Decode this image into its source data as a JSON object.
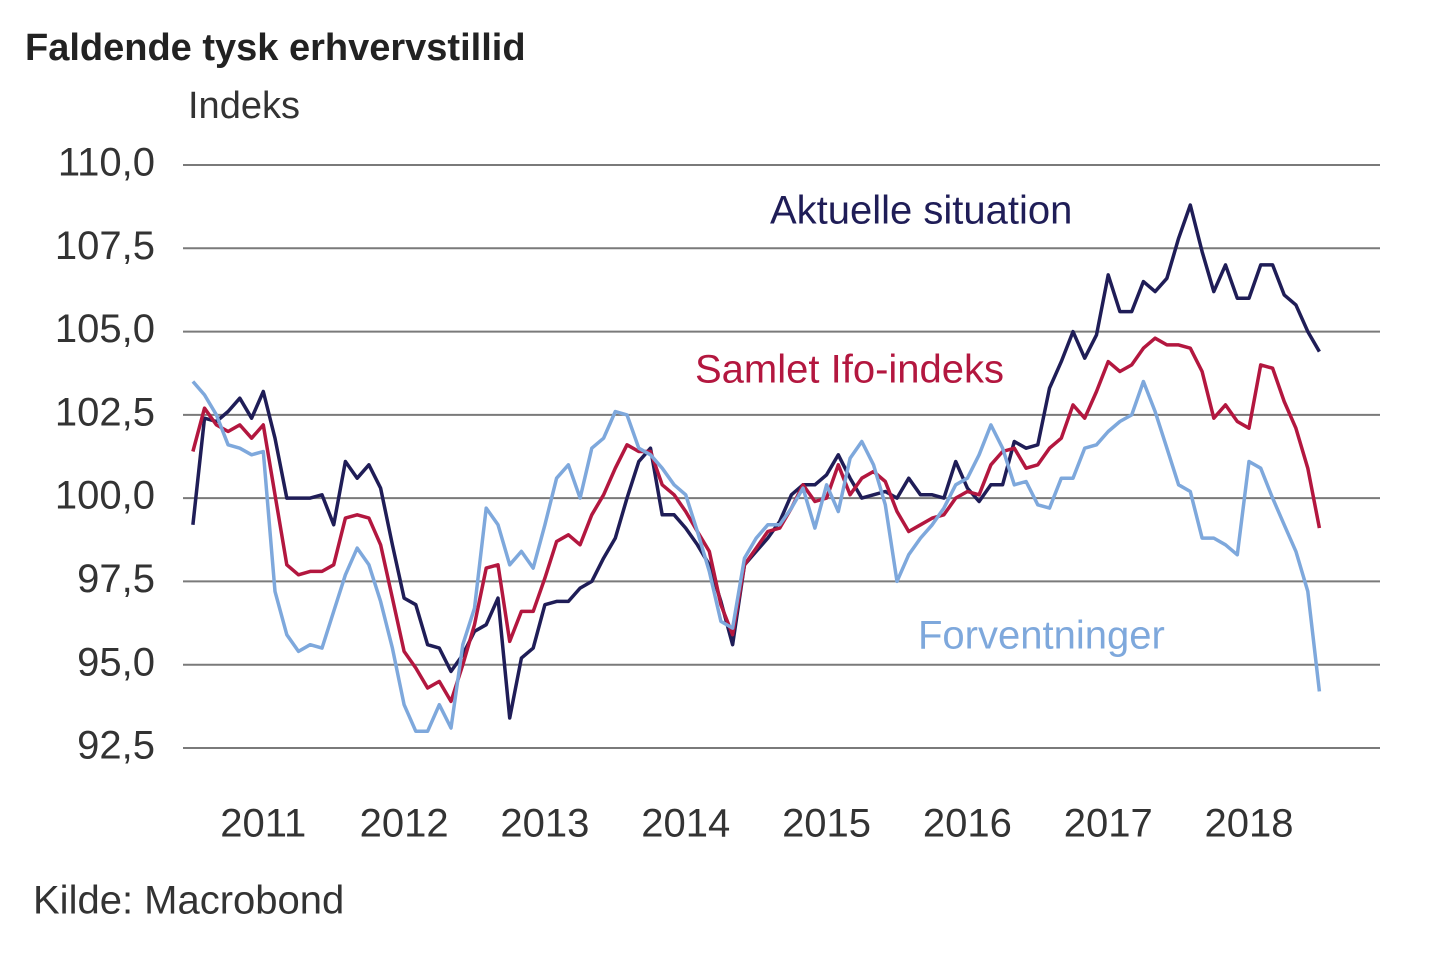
{
  "chart_data": {
    "type": "line",
    "title": "Faldende tysk erhvervstillid",
    "y_label": "Indeks",
    "source": "Kilde: Macrobond",
    "x": [
      2011,
      2011.083,
      2011.167,
      2011.25,
      2011.333,
      2011.417,
      2011.5,
      2011.583,
      2011.667,
      2011.75,
      2011.833,
      2011.917,
      2012,
      2012.083,
      2012.167,
      2012.25,
      2012.333,
      2012.417,
      2012.5,
      2012.583,
      2012.667,
      2012.75,
      2012.833,
      2012.917,
      2013,
      2013.083,
      2013.167,
      2013.25,
      2013.333,
      2013.417,
      2013.5,
      2013.583,
      2013.667,
      2013.75,
      2013.833,
      2013.917,
      2014,
      2014.083,
      2014.167,
      2014.25,
      2014.333,
      2014.417,
      2014.5,
      2014.583,
      2014.667,
      2014.75,
      2014.833,
      2014.917,
      2015,
      2015.083,
      2015.167,
      2015.25,
      2015.333,
      2015.417,
      2015.5,
      2015.583,
      2015.667,
      2015.75,
      2015.833,
      2015.917,
      2016,
      2016.083,
      2016.167,
      2016.25,
      2016.333,
      2016.417,
      2016.5,
      2016.583,
      2016.667,
      2016.75,
      2016.833,
      2016.917,
      2017,
      2017.083,
      2017.167,
      2017.25,
      2017.333,
      2017.417,
      2017.5,
      2017.583,
      2017.667,
      2017.75,
      2017.833,
      2017.917,
      2018,
      2018.083,
      2018.167,
      2018.25,
      2018.333,
      2018.417,
      2018.5,
      2018.583,
      2018.667,
      2018.75,
      2018.833,
      2018.917,
      2019
    ],
    "series": [
      {
        "name": "Aktuelle situation",
        "color": "#1f1d57",
        "values": [
          99.2,
          102.4,
          102.3,
          102.6,
          103.0,
          102.4,
          103.2,
          101.8,
          100.0,
          100.0,
          100.0,
          100.1,
          99.2,
          101.1,
          100.6,
          101.0,
          100.3,
          98.6,
          97.0,
          96.8,
          95.6,
          95.5,
          94.8,
          95.3,
          96.0,
          96.2,
          97.0,
          93.4,
          95.2,
          95.5,
          96.8,
          96.9,
          96.9,
          97.3,
          97.5,
          98.2,
          98.8,
          100.0,
          101.1,
          101.5,
          99.5,
          99.5,
          99.1,
          98.6,
          98.0,
          96.9,
          95.6,
          98.0,
          98.4,
          98.8,
          99.3,
          100.1,
          100.4,
          100.4,
          100.7,
          101.3,
          100.6,
          100.0,
          100.1,
          100.2,
          100.0,
          100.6,
          100.1,
          100.1,
          100.0,
          101.1,
          100.3,
          99.9,
          100.4,
          100.4,
          101.7,
          101.5,
          101.6,
          103.3,
          104.1,
          105.0,
          104.2,
          104.9,
          106.7,
          105.6,
          105.6,
          106.5,
          106.2,
          106.6,
          107.8,
          108.8,
          107.4,
          106.2,
          107.0,
          106.0,
          106.0,
          107.0,
          107.0,
          106.1,
          105.8,
          105.0,
          104.4
        ]
      },
      {
        "name": "Samlet Ifo-indeks",
        "color": "#b3173f",
        "values": [
          101.4,
          102.7,
          102.2,
          102.0,
          102.2,
          101.8,
          102.2,
          100.1,
          98.0,
          97.7,
          97.8,
          97.8,
          98.0,
          99.4,
          99.5,
          99.4,
          98.6,
          97.0,
          95.4,
          94.9,
          94.3,
          94.5,
          93.9,
          95.0,
          96.2,
          97.9,
          98.0,
          95.7,
          96.6,
          96.6,
          97.6,
          98.7,
          98.9,
          98.6,
          99.5,
          100.1,
          100.9,
          101.6,
          101.4,
          101.4,
          100.4,
          100.1,
          99.6,
          99.0,
          98.4,
          96.8,
          95.9,
          98.0,
          98.5,
          99.0,
          99.1,
          99.7,
          100.4,
          99.9,
          100.0,
          101.0,
          100.1,
          100.6,
          100.8,
          100.5,
          99.6,
          99.0,
          99.2,
          99.4,
          99.5,
          100.0,
          100.2,
          100.1,
          101.0,
          101.4,
          101.5,
          100.9,
          101.0,
          101.5,
          101.8,
          102.8,
          102.4,
          103.2,
          104.1,
          103.8,
          104.0,
          104.5,
          104.8,
          104.6,
          104.6,
          104.5,
          103.8,
          102.4,
          102.8,
          102.3,
          102.1,
          104.0,
          103.9,
          102.9,
          102.1,
          100.9,
          99.1
        ]
      },
      {
        "name": "Forventninger",
        "color": "#7ea8dc",
        "values": [
          103.5,
          103.1,
          102.5,
          101.6,
          101.5,
          101.3,
          101.4,
          97.2,
          95.9,
          95.4,
          95.6,
          95.5,
          96.6,
          97.7,
          98.5,
          98.0,
          96.9,
          95.5,
          93.8,
          93.0,
          93.0,
          93.8,
          93.1,
          95.6,
          96.7,
          99.7,
          99.2,
          98.0,
          98.4,
          97.9,
          99.2,
          100.6,
          101.0,
          100.0,
          101.5,
          101.8,
          102.6,
          102.5,
          101.5,
          101.3,
          100.9,
          100.4,
          100.1,
          99.0,
          97.8,
          96.3,
          96.1,
          98.2,
          98.8,
          99.2,
          99.2,
          99.7,
          100.3,
          99.1,
          100.4,
          99.6,
          101.2,
          101.7,
          101.0,
          99.8,
          97.5,
          98.3,
          98.8,
          99.2,
          99.7,
          100.4,
          100.6,
          101.3,
          102.2,
          101.5,
          100.4,
          100.5,
          99.8,
          99.7,
          100.6,
          100.6,
          101.5,
          101.6,
          102.0,
          102.3,
          102.5,
          103.5,
          102.6,
          101.5,
          100.4,
          100.2,
          98.8,
          98.8,
          98.6,
          98.3,
          101.1,
          100.9,
          100.0,
          99.2,
          98.4,
          97.2,
          94.2
        ]
      }
    ],
    "xlim": [
      2010.93,
      2019.43
    ],
    "xticks": [
      {
        "value": 2011.5,
        "label": "2011"
      },
      {
        "value": 2012.5,
        "label": "2012"
      },
      {
        "value": 2013.5,
        "label": "2013"
      },
      {
        "value": 2014.5,
        "label": "2014"
      },
      {
        "value": 2015.5,
        "label": "2015"
      },
      {
        "value": 2016.5,
        "label": "2016"
      },
      {
        "value": 2017.5,
        "label": "2017"
      },
      {
        "value": 2018.5,
        "label": "2018"
      }
    ],
    "ylim": [
      92.5,
      110
    ],
    "yticks": [
      {
        "value": 92.5,
        "label": "92,5"
      },
      {
        "value": 95,
        "label": "95,0"
      },
      {
        "value": 97.5,
        "label": "97,5"
      },
      {
        "value": 100,
        "label": "100,0"
      },
      {
        "value": 102.5,
        "label": "102,5"
      },
      {
        "value": 105,
        "label": "105,0"
      },
      {
        "value": 107.5,
        "label": "107,5"
      },
      {
        "value": 110,
        "label": "110,0"
      }
    ],
    "grid": true
  }
}
